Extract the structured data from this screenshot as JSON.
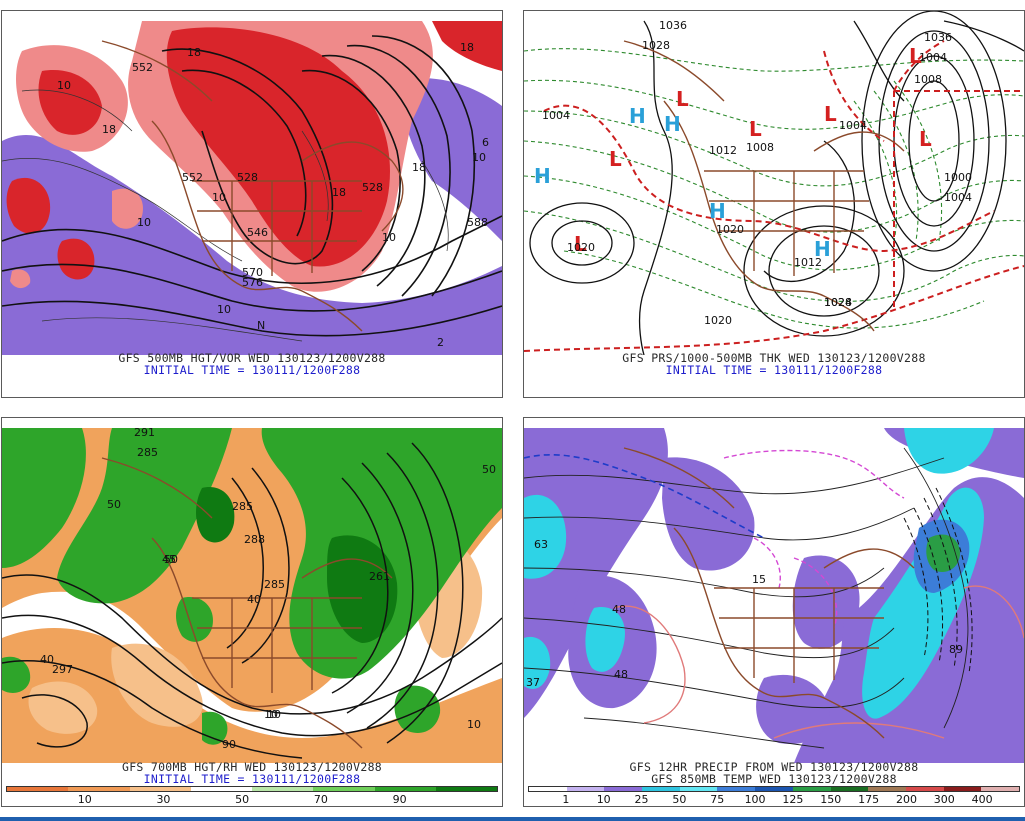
{
  "panels": {
    "p1": {
      "caption_line1": "GFS 500MB HGT/VOR WED 130123/1200V288",
      "caption_line2": "INITIAL TIME = 130111/1200F288",
      "labels": [
        "18",
        "18",
        "10",
        "10",
        "10",
        "18",
        "18",
        "10",
        "528",
        "570",
        "546",
        "552",
        "10",
        "576",
        "588",
        "10",
        "6",
        "2",
        "552",
        "528",
        "18",
        "N"
      ]
    },
    "p2": {
      "caption_line1": "GFS PRS/1000-500MB THK WED 130123/1200V288",
      "caption_line2": "INITIAL TIME = 130111/1200F288",
      "labels": [
        "1036",
        "1028",
        "1004",
        "1004",
        "1012",
        "1008",
        "1004",
        "1020",
        "1012",
        "1024",
        "1004",
        "1020",
        "1028",
        "1020",
        "1000",
        "1008",
        "1036"
      ],
      "highs": [
        "H",
        "H",
        "H",
        "H",
        "H"
      ],
      "lows": [
        "L",
        "L",
        "L",
        "L",
        "L",
        "L",
        "L"
      ]
    },
    "p3": {
      "caption_line1": "GFS 700MB HGT/RH WED 130123/1200V288",
      "caption_line2": "INITIAL TIME = 130111/1200F288",
      "labels": [
        "291",
        "285",
        "285",
        "50",
        "50",
        "288",
        "285",
        "10",
        "40",
        "45",
        "261",
        "297",
        "10",
        "10",
        "90",
        "50",
        "40"
      ],
      "colorbar_labels": [
        "10",
        "30",
        "50",
        "70",
        "90"
      ]
    },
    "p4": {
      "caption_line1": "GFS 12HR PRECIP FROM WED 130123/1200V288",
      "caption_line2": "GFS 850MB TEMP WED 130123/1200V288",
      "labels": [
        "63",
        "48",
        "37",
        "15",
        "89",
        "48"
      ],
      "colorbar_labels": [
        "1",
        "10",
        "25",
        "50",
        "75",
        "100",
        "125",
        "150",
        "175",
        "200",
        "300",
        "400"
      ]
    }
  },
  "colors": {
    "vort_red": "#d9252b",
    "vort_purple": "#8a6bd6",
    "rh_green": "#2ea52a",
    "rh_orange": "#f0a35c",
    "precip_purple": "#8a6bd6",
    "precip_cyan": "#2ed3e6",
    "low_red": "#d42020",
    "high_blue": "#2aa0d8"
  },
  "colorbar_rh": [
    "#e8773a",
    "#f09a55",
    "#f6c08a",
    "#ffffff",
    "#b8e6a8",
    "#6fcf5a",
    "#2fa52a",
    "#0f7a12"
  ],
  "colorbar_precip": [
    "#ffffff",
    "#c5b3f0",
    "#8a6bd6",
    "#2fc4e0",
    "#62e6f3",
    "#3c7dd8",
    "#1b55b0",
    "#2a9d45",
    "#1a6e22",
    "#a07854",
    "#d64a4a",
    "#8a1d1d",
    "#e0b0b0"
  ]
}
